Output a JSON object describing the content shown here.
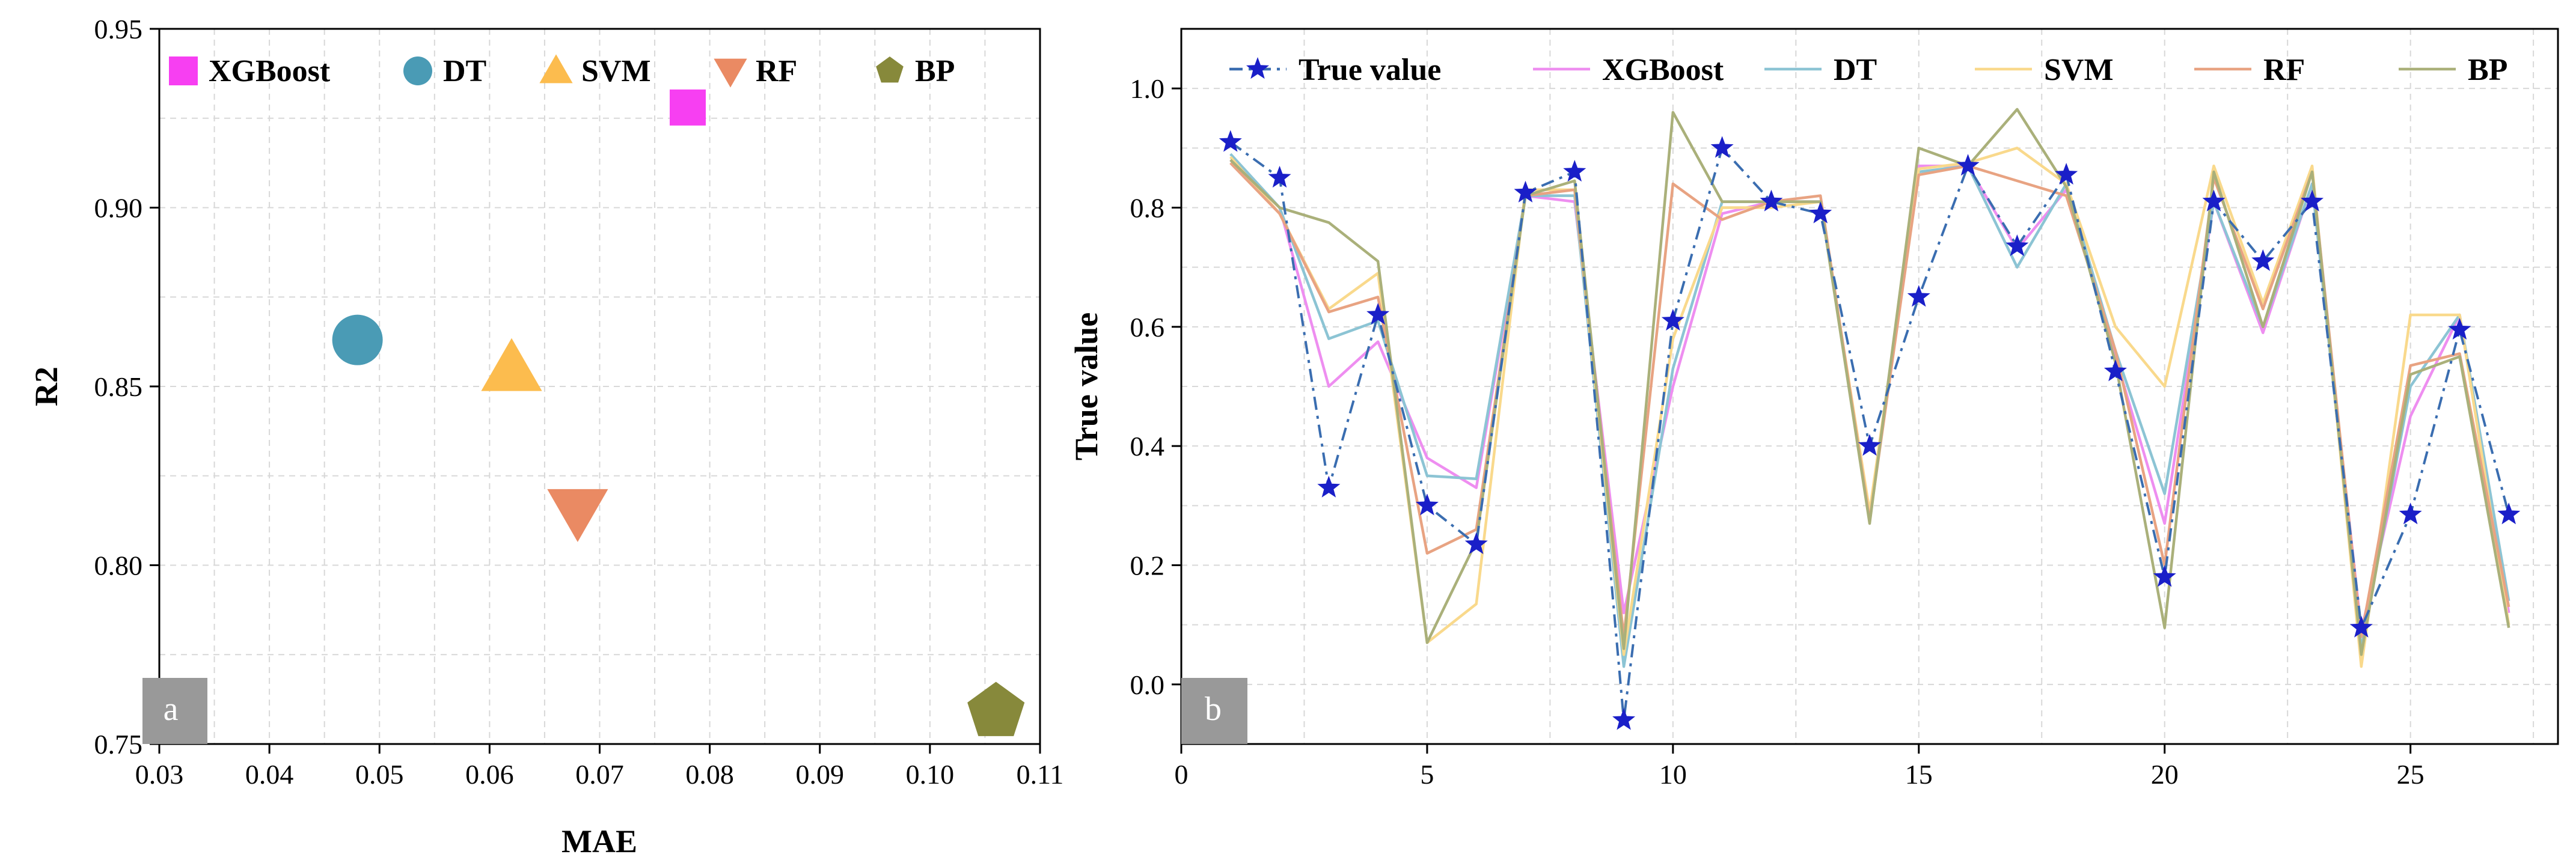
{
  "chart_data": [
    {
      "type": "scatter",
      "panel_label": "a",
      "xlabel": "MAE",
      "ylabel": "R2",
      "xlim": [
        0.03,
        0.11
      ],
      "ylim": [
        0.75,
        0.95
      ],
      "xticks": [
        "0.03",
        "0.04",
        "0.05",
        "0.06",
        "0.07",
        "0.08",
        "0.09",
        "0.10",
        "0.11"
      ],
      "yticks": [
        "0.75",
        "0.80",
        "0.85",
        "0.90",
        "0.95"
      ],
      "grid": true,
      "legend_position": "top",
      "points": [
        {
          "name": "XGBoost",
          "x": 0.078,
          "y": 0.928,
          "marker": "square",
          "color": "#f73ff2"
        },
        {
          "name": "DT",
          "x": 0.048,
          "y": 0.863,
          "marker": "circle",
          "color": "#4a9bb5"
        },
        {
          "name": "SVM",
          "x": 0.062,
          "y": 0.855,
          "marker": "triangle-up",
          "color": "#fcbc4e"
        },
        {
          "name": "RF",
          "x": 0.068,
          "y": 0.815,
          "marker": "triangle-down",
          "color": "#ea8a63"
        },
        {
          "name": "BP",
          "x": 0.106,
          "y": 0.759,
          "marker": "pentagon",
          "color": "#87893b"
        }
      ]
    },
    {
      "type": "line",
      "panel_label": "b",
      "xlabel": "",
      "ylabel": "True value",
      "xlim": [
        0,
        28
      ],
      "ylim": [
        -0.1,
        1.1
      ],
      "xticks": [
        "0",
        "5",
        "10",
        "15",
        "20",
        "25"
      ],
      "yticks": [
        "0.0",
        "0.2",
        "0.4",
        "0.6",
        "0.8",
        "1.0"
      ],
      "grid": true,
      "legend_position": "top",
      "x": [
        1,
        2,
        3,
        4,
        5,
        6,
        7,
        8,
        9,
        10,
        11,
        12,
        13,
        14,
        15,
        16,
        17,
        18,
        19,
        20,
        21,
        22,
        23,
        24,
        25,
        26,
        27
      ],
      "series": [
        {
          "name": "True value",
          "color": "#3a6db0",
          "style": "dashdot",
          "marker": "star",
          "values": [
            0.91,
            0.85,
            0.33,
            0.62,
            0.3,
            0.235,
            0.825,
            0.86,
            -0.06,
            0.61,
            0.9,
            0.81,
            0.79,
            0.4,
            0.65,
            0.87,
            0.735,
            0.855,
            0.525,
            0.18,
            0.81,
            0.71,
            0.81,
            0.095,
            0.285,
            0.595,
            0.285
          ]
        },
        {
          "name": "XGBoost",
          "color": "#ee8ef0",
          "style": "solid",
          "values": [
            0.88,
            0.8,
            0.5,
            0.575,
            0.38,
            0.33,
            0.82,
            0.81,
            0.12,
            0.5,
            0.79,
            0.81,
            0.81,
            0.285,
            0.87,
            0.87,
            0.73,
            0.83,
            0.55,
            0.27,
            0.81,
            0.59,
            0.84,
            0.09,
            0.45,
            0.62,
            0.12
          ]
        },
        {
          "name": "DT",
          "color": "#8cc4d4",
          "style": "solid",
          "values": [
            0.89,
            0.8,
            0.58,
            0.61,
            0.35,
            0.345,
            0.82,
            0.82,
            0.03,
            0.53,
            0.81,
            0.81,
            0.81,
            0.28,
            0.86,
            0.87,
            0.7,
            0.84,
            0.56,
            0.32,
            0.81,
            0.6,
            0.84,
            0.06,
            0.5,
            0.62,
            0.14
          ]
        },
        {
          "name": "SVM",
          "color": "#f9d98c",
          "style": "solid",
          "values": [
            0.885,
            0.79,
            0.63,
            0.69,
            0.07,
            0.135,
            0.83,
            0.83,
            0.05,
            0.58,
            0.8,
            0.8,
            0.81,
            0.29,
            0.865,
            0.875,
            0.9,
            0.84,
            0.6,
            0.5,
            0.87,
            0.64,
            0.87,
            0.03,
            0.62,
            0.62,
            0.1
          ]
        },
        {
          "name": "RF",
          "color": "#e8a382",
          "style": "solid",
          "values": [
            0.875,
            0.79,
            0.625,
            0.65,
            0.22,
            0.26,
            0.82,
            0.83,
            0.08,
            0.84,
            0.78,
            0.81,
            0.82,
            0.275,
            0.855,
            0.87,
            0.845,
            0.82,
            0.56,
            0.2,
            0.85,
            0.63,
            0.86,
            0.08,
            0.535,
            0.555,
            0.13
          ]
        },
        {
          "name": "BP",
          "color": "#aab07a",
          "style": "solid",
          "values": [
            0.88,
            0.8,
            0.775,
            0.71,
            0.07,
            0.24,
            0.82,
            0.845,
            0.06,
            0.96,
            0.81,
            0.81,
            0.81,
            0.27,
            0.9,
            0.87,
            0.965,
            0.835,
            0.54,
            0.095,
            0.86,
            0.6,
            0.86,
            0.05,
            0.52,
            0.55,
            0.095
          ]
        }
      ]
    }
  ]
}
